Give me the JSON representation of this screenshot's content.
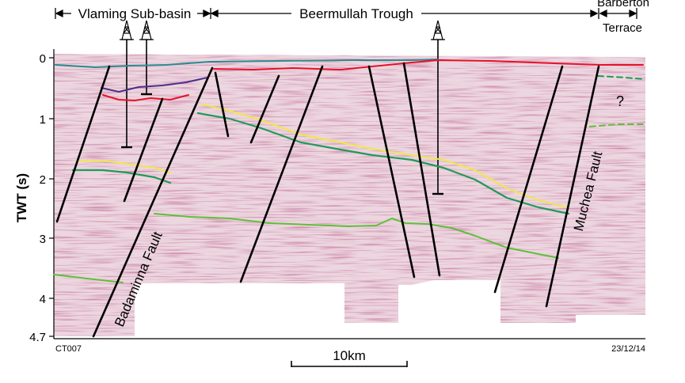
{
  "header": {
    "vlaming": "Vlaming Sub-basin",
    "beermullah": "Beermullah Trough",
    "barberton_line1": "Barberton",
    "barberton_line2": "Terrace"
  },
  "axis": {
    "label": "TWT (s)",
    "ticks": [
      "0",
      "1",
      "2",
      "3",
      "4",
      "4.7"
    ]
  },
  "faults": {
    "badaminna": "Badaminna Fault",
    "muchea": "Muchea Fault"
  },
  "annotations": {
    "question": "?",
    "line_id": "CT007",
    "date": "23/12/14",
    "scale": "10km"
  },
  "colors": {
    "seismic_bg": "#e9cfd9",
    "seismic_dark": "#9a3f5f",
    "seabed": "#2a8a8f",
    "red_horizon": "#e8102a",
    "purple_horizon": "#4b2f8c",
    "yellow_horizon": "#f1e64b",
    "green_horizon": "#1f9a5a",
    "lime_horizon": "#5fbf3a",
    "fault": "#000000"
  }
}
